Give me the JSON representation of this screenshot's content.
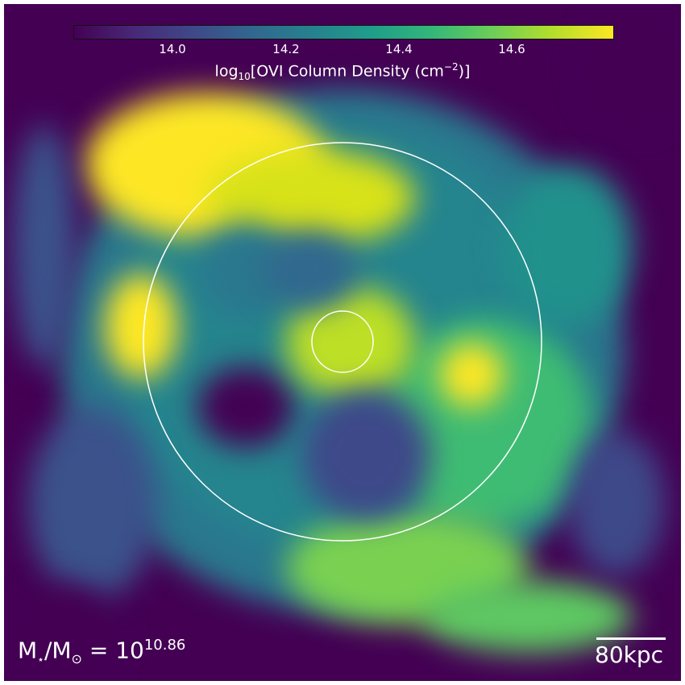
{
  "chart_data": {
    "type": "heatmap",
    "title": "",
    "colormap": "viridis",
    "colorbar": {
      "label_prefix": "log",
      "label_sub": "10",
      "label_main": "[OVI Column Density (cm",
      "label_sup": "−2",
      "label_end": ")]",
      "range": [
        13.82,
        14.78
      ],
      "ticks": [
        "14.0",
        "14.2",
        "14.4",
        "14.6"
      ],
      "placement": "top"
    },
    "annotations": {
      "mass_lhs": "M",
      "mass_sub1": "⋆",
      "mass_mid": "/M",
      "mass_sub2": "⊙",
      "mass_eq": " = 10",
      "mass_exp": "10.86",
      "scale_bar_label": "80kpc"
    },
    "circles": [
      "outer-radius",
      "inner-radius"
    ],
    "colors": {
      "low": "#440154",
      "mid": "#21918c",
      "high": "#fde725",
      "overlay": "#ffffff"
    }
  }
}
